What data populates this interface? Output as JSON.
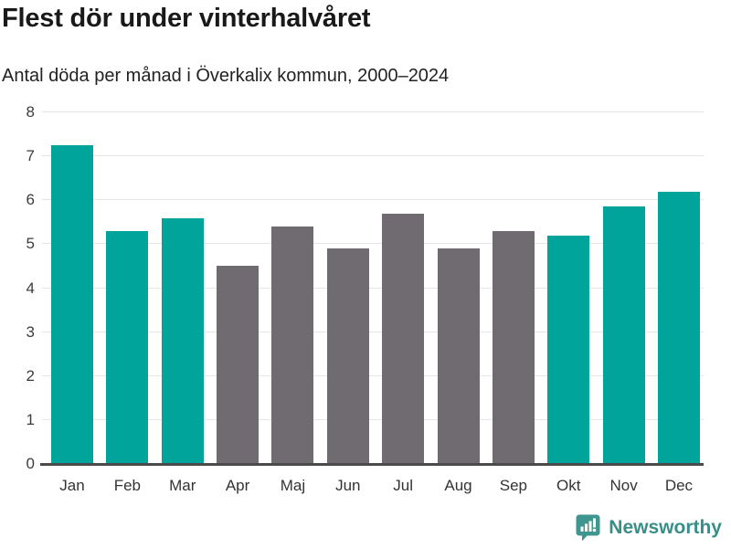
{
  "header": {
    "title": "Flest dör under vinterhalvåret",
    "subtitle": "Antal döda per månad i Överkalix kommun, 2000–2024"
  },
  "chart_data": {
    "type": "bar",
    "title": "Flest dör under vinterhalvåret",
    "subtitle": "Antal döda per månad i Överkalix kommun, 2000–2024",
    "categories": [
      "Jan",
      "Feb",
      "Mar",
      "Apr",
      "Maj",
      "Jun",
      "Jul",
      "Aug",
      "Sep",
      "Okt",
      "Nov",
      "Dec"
    ],
    "values": [
      7.25,
      5.3,
      5.6,
      4.5,
      5.4,
      4.9,
      5.7,
      4.9,
      5.3,
      5.2,
      5.85,
      6.2
    ],
    "highlight": [
      true,
      true,
      true,
      false,
      false,
      false,
      false,
      false,
      false,
      true,
      true,
      true
    ],
    "colors": {
      "highlight": "#00a49b",
      "default": "#6f6b71",
      "gridline": "#e5e5e5",
      "axis": "#4a4a4a"
    },
    "xlabel": "",
    "ylabel": "",
    "ylim": [
      0,
      8
    ],
    "yticks": [
      0,
      1,
      2,
      3,
      4,
      5,
      6,
      7,
      8
    ],
    "grid": "horizontal",
    "legend": "none"
  },
  "footer": {
    "brand": "Newsworthy",
    "brand_color": "#3a8e88",
    "icon": "bar-chart-speech-bubble-icon",
    "icon_color": "#3e968f"
  }
}
